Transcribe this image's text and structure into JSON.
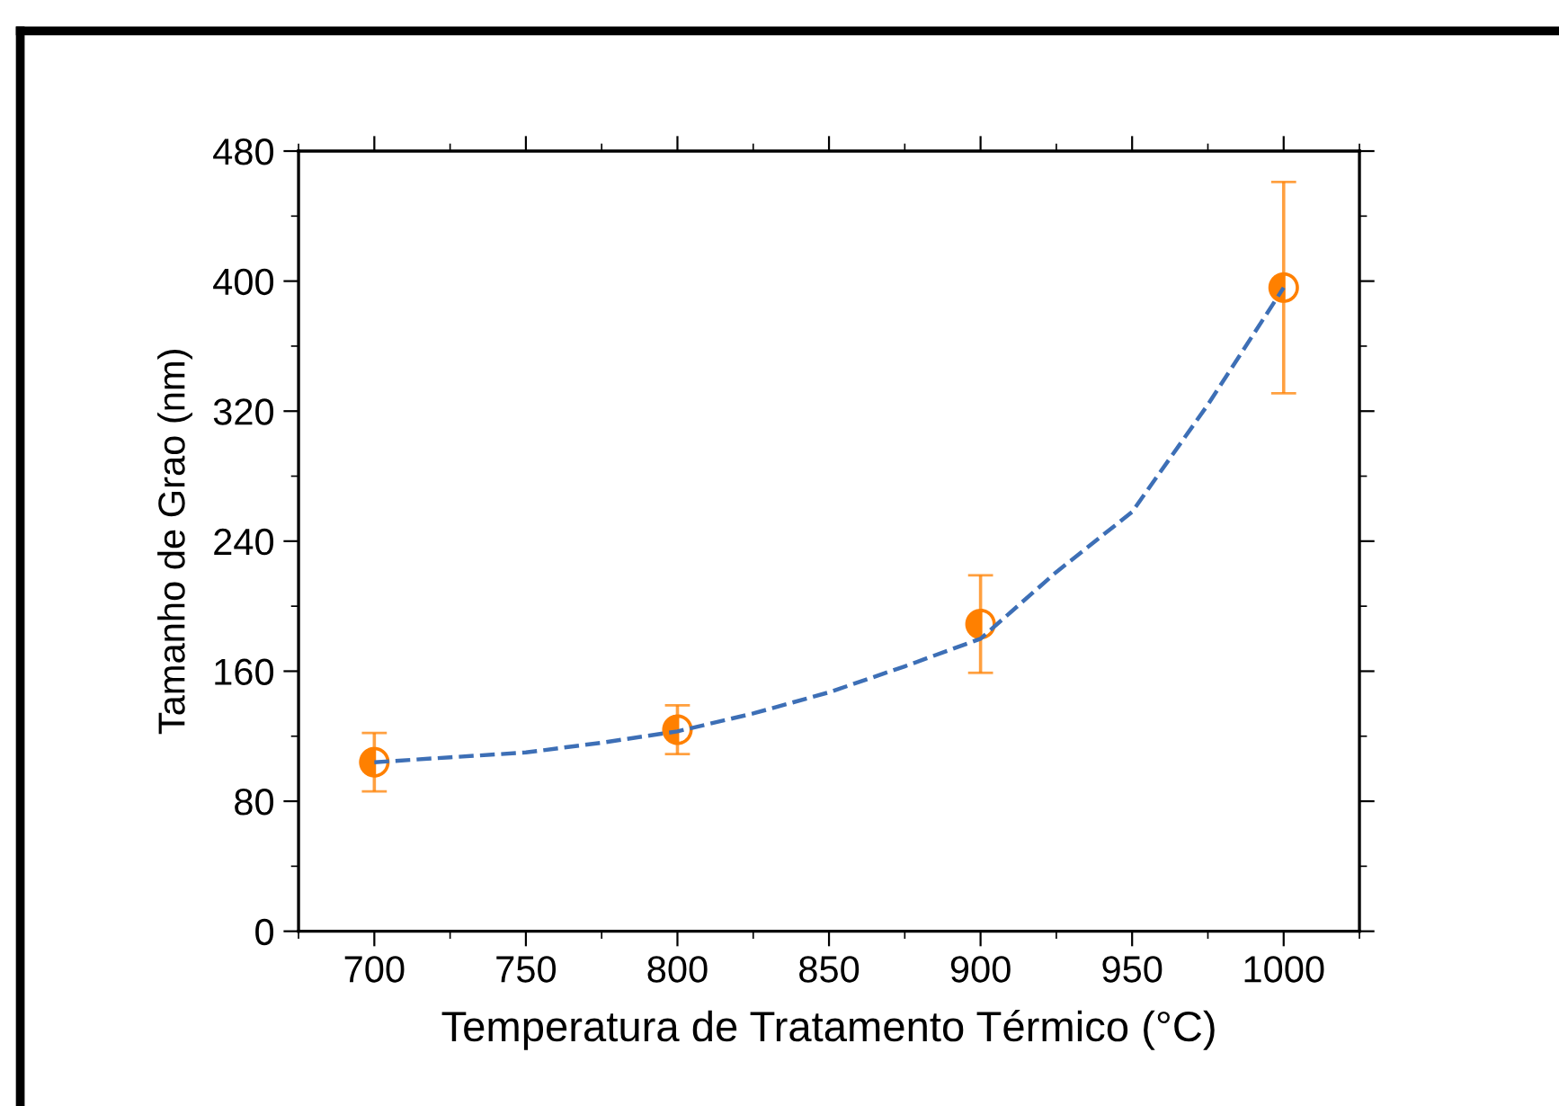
{
  "chart_data": {
    "type": "scatter",
    "xlabel": "Temperatura de Tratamento Térmico (°C)",
    "ylabel": "Tamanho de Grao (nm)",
    "x": [
      700,
      800,
      900,
      1000
    ],
    "series": [
      {
        "color": "#ff8000",
        "values": [
          104,
          124,
          189,
          396
        ],
        "errors": [
          18,
          15,
          30,
          65
        ],
        "marker": "circle"
      },
      {
        "type": "line",
        "color": "#3d6fb6",
        "line_style": "dashed",
        "marker": "none",
        "x": [
          700,
          725,
          750,
          775,
          800,
          825,
          850,
          875,
          900,
          925,
          950,
          975,
          1000
        ],
        "values": [
          104,
          107,
          110,
          116,
          123,
          134,
          147,
          163,
          180,
          221,
          258,
          324,
          396
        ]
      }
    ],
    "xlim": [
      675,
      1025
    ],
    "xticks": [
      700,
      750,
      800,
      850,
      900,
      950,
      1000
    ],
    "ylim": [
      0,
      480
    ],
    "yticks": [
      0,
      80,
      160,
      240,
      320,
      400,
      480
    ],
    "grid": false,
    "legend": false
  }
}
